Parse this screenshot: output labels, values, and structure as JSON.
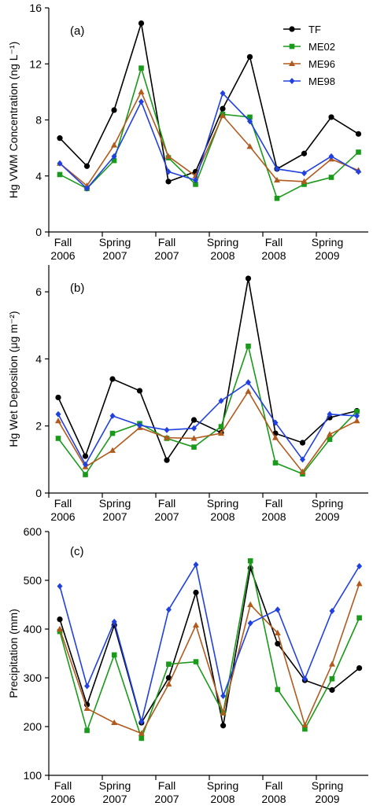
{
  "colors": {
    "TF": "#000000",
    "ME02": "#1a9a1a",
    "ME96": "#b05a1e",
    "ME98": "#2040e0"
  },
  "legend": [
    {
      "name": "TF",
      "marker": "circle"
    },
    {
      "name": "ME02",
      "marker": "square"
    },
    {
      "name": "ME96",
      "marker": "triangle"
    },
    {
      "name": "ME98",
      "marker": "diamond"
    }
  ],
  "chart_data": [
    {
      "type": "line",
      "panel_label": "(a)",
      "ylabel": "Hg VWM Concentration (ng L⁻¹)",
      "ylim": [
        0,
        16
      ],
      "yticks": [
        0,
        4,
        8,
        12,
        16
      ],
      "x_tick_labels": [
        {
          "line1": "Fall",
          "line2": "2006"
        },
        {
          "line1": "Spring",
          "line2": "2007"
        },
        {
          "line1": "Fall",
          "line2": "2007"
        },
        {
          "line1": "Spring",
          "line2": "2008"
        },
        {
          "line1": "Fall",
          "line2": "2008"
        },
        {
          "line1": "Spring",
          "line2": "2009"
        }
      ],
      "x": [
        1,
        2,
        3,
        4,
        5,
        6,
        7,
        8,
        9,
        10,
        11,
        12
      ],
      "series": [
        {
          "name": "TF",
          "values": [
            6.7,
            4.7,
            8.7,
            14.9,
            3.6,
            4.3,
            8.8,
            12.5,
            4.5,
            5.6,
            8.2,
            7.0
          ]
        },
        {
          "name": "ME02",
          "values": [
            4.1,
            3.1,
            5.1,
            11.7,
            5.3,
            3.4,
            8.4,
            8.2,
            2.4,
            3.4,
            3.9,
            5.7
          ]
        },
        {
          "name": "ME96",
          "values": [
            4.9,
            3.3,
            6.2,
            10.0,
            5.4,
            4.0,
            8.3,
            6.1,
            3.7,
            3.6,
            5.2,
            4.4
          ]
        },
        {
          "name": "ME98",
          "values": [
            4.9,
            3.1,
            5.4,
            9.3,
            4.3,
            3.7,
            9.9,
            7.9,
            4.5,
            4.2,
            5.4,
            4.3
          ]
        }
      ]
    },
    {
      "type": "line",
      "panel_label": "(b)",
      "ylabel": "Hg Wet Deposition (μg m⁻²)",
      "ylim": [
        0,
        6.8
      ],
      "yticks": [
        0,
        2,
        4,
        6
      ],
      "x_tick_labels": [
        {
          "line1": "Fall",
          "line2": "2006"
        },
        {
          "line1": "Spring",
          "line2": "2007"
        },
        {
          "line1": "Fall",
          "line2": "2007"
        },
        {
          "line1": "Spring",
          "line2": "2008"
        },
        {
          "line1": "Fall",
          "line2": "2008"
        },
        {
          "line1": "Spring",
          "line2": "2009"
        }
      ],
      "x": [
        1,
        2,
        3,
        4,
        5,
        6,
        7,
        8,
        9,
        10,
        11,
        12
      ],
      "series": [
        {
          "name": "TF",
          "values": [
            2.85,
            1.1,
            3.4,
            3.05,
            0.98,
            2.18,
            1.8,
            6.4,
            1.78,
            1.5,
            2.25,
            2.45
          ]
        },
        {
          "name": "ME02",
          "values": [
            1.63,
            0.55,
            1.78,
            2.07,
            1.63,
            1.37,
            1.98,
            4.38,
            0.9,
            0.57,
            1.6,
            2.43
          ]
        },
        {
          "name": "ME96",
          "values": [
            2.15,
            0.78,
            1.27,
            1.95,
            1.65,
            1.63,
            1.78,
            3.03,
            1.65,
            0.63,
            1.75,
            2.15
          ]
        },
        {
          "name": "ME98",
          "values": [
            2.35,
            0.85,
            2.3,
            2.02,
            1.88,
            1.93,
            2.75,
            3.3,
            2.1,
            1.0,
            2.35,
            2.3
          ]
        }
      ]
    },
    {
      "type": "line",
      "panel_label": "(c)",
      "ylabel": "Precipitation (mm)",
      "ylim": [
        100,
        600
      ],
      "yticks": [
        100,
        200,
        300,
        400,
        500,
        600
      ],
      "x_tick_labels": [
        {
          "line1": "Fall",
          "line2": "2006"
        },
        {
          "line1": "Spring",
          "line2": "2007"
        },
        {
          "line1": "Fall",
          "line2": "2007"
        },
        {
          "line1": "Spring",
          "line2": "2008"
        },
        {
          "line1": "Fall",
          "line2": "2008"
        },
        {
          "line1": "Spring",
          "line2": "2009"
        }
      ],
      "x": [
        1,
        2,
        3,
        4,
        5,
        6,
        7,
        8,
        9,
        10,
        11,
        12
      ],
      "series": [
        {
          "name": "TF",
          "values": [
            420,
            245,
            408,
            208,
            300,
            475,
            202,
            525,
            370,
            295,
            275,
            320
          ]
        },
        {
          "name": "ME02",
          "values": [
            395,
            192,
            347,
            176,
            328,
            333,
            228,
            540,
            276,
            195,
            298,
            423
          ]
        },
        {
          "name": "ME96",
          "values": [
            400,
            237,
            208,
            186,
            287,
            408,
            228,
            450,
            392,
            203,
            328,
            493
          ]
        },
        {
          "name": "ME98",
          "values": [
            488,
            283,
            415,
            210,
            440,
            532,
            263,
            412,
            440,
            298,
            437,
            529
          ]
        }
      ]
    }
  ]
}
